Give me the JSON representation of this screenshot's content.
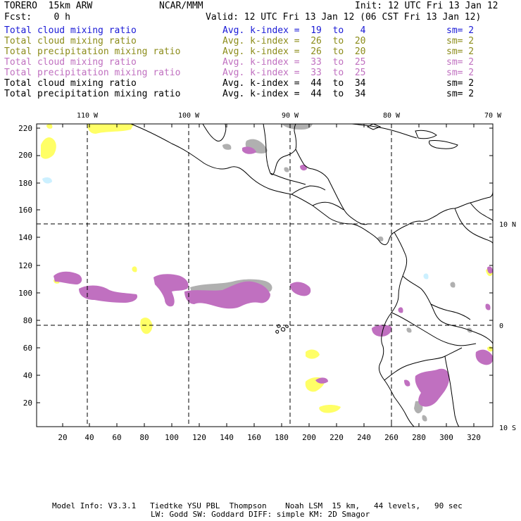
{
  "header": {
    "model": "TORERO  15km ARW",
    "org": "NCAR/MMM",
    "init": "Init: 12 UTC Fri 13 Jan 12",
    "fcst": "Fcst:    0 h",
    "valid": "Valid: 12 UTC Fri 13 Jan 12 (06 CST Fri 13 Jan 12)"
  },
  "legend": [
    {
      "name": "Total cloud mixing ratio",
      "avg": "Avg. k-index =  19  to   4",
      "sm": "sm= 2",
      "color": "#1a1ad6"
    },
    {
      "name": "Total cloud mixing ratio",
      "avg": "Avg. k-index =  26  to  20",
      "sm": "sm= 2",
      "color": "#8c8c1a"
    },
    {
      "name": "Total precipitation mixing ratio",
      "avg": "Avg. k-index =  26  to  20",
      "sm": "sm= 2",
      "color": "#8c8c1a"
    },
    {
      "name": "Total cloud mixing ratio",
      "avg": "Avg. k-index =  33  to  25",
      "sm": "sm= 2",
      "color": "#c070c0"
    },
    {
      "name": "Total precipitation mixing ratio",
      "avg": "Avg. k-index =  33  to  25",
      "sm": "sm= 2",
      "color": "#c070c0"
    },
    {
      "name": "Total cloud mixing ratio",
      "avg": "Avg. k-index =  44  to  34",
      "sm": "sm= 2",
      "color": "#000000"
    },
    {
      "name": "Total precipitation mixing ratio",
      "avg": "Avg. k-index =  44  to  34",
      "sm": "sm= 2",
      "color": "#000000"
    }
  ],
  "map": {
    "lon_labels": [
      "110 W",
      "100 W",
      "90 W",
      "80 W",
      "70 W"
    ],
    "lat_labels": [
      "10 N",
      "0",
      "10 S"
    ],
    "x_ticks": [
      "20",
      "40",
      "60",
      "80",
      "100",
      "120",
      "140",
      "160",
      "180",
      "200",
      "220",
      "240",
      "260",
      "280",
      "300",
      "320"
    ],
    "y_ticks": [
      "220",
      "200",
      "180",
      "160",
      "140",
      "120",
      "100",
      "80",
      "60",
      "40",
      "20"
    ],
    "colors": {
      "yellow": "#ffff66",
      "purple": "#c070c0",
      "gray": "#b0b0b0",
      "lightblue": "#ccf0ff",
      "coast": "#000000"
    }
  },
  "footer": {
    "line1": "Model Info: V3.3.1   Tiedtke YSU PBL  Thompson    Noah LSM  15 km,   44 levels,   90 sec",
    "line2": "LW: Godd SW: Goddard DIFF: simple KM: 2D Smagor"
  }
}
